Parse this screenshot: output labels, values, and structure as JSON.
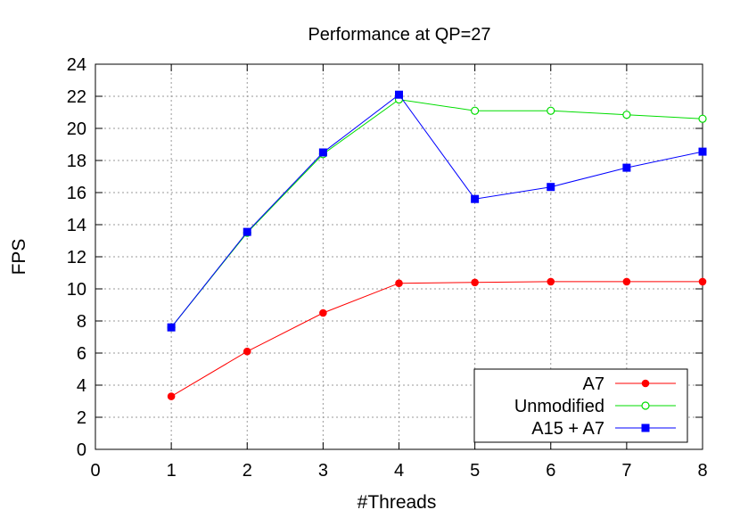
{
  "chart_data": {
    "type": "line",
    "title": "Performance at QP=27",
    "xlabel": "#Threads",
    "ylabel": "FPS",
    "xlim": [
      0,
      8
    ],
    "ylim": [
      0,
      24
    ],
    "xticks": [
      0,
      1,
      2,
      3,
      4,
      5,
      6,
      7,
      8
    ],
    "yticks": [
      0,
      2,
      4,
      6,
      8,
      10,
      12,
      14,
      16,
      18,
      20,
      22,
      24
    ],
    "grid": true,
    "legend_position": "bottom-right",
    "x": [
      1,
      2,
      3,
      4,
      5,
      6,
      7,
      8
    ],
    "series": [
      {
        "name": "A7",
        "color": "#ff0000",
        "marker": "filled-circle",
        "values": [
          3.3,
          6.1,
          8.5,
          10.35,
          10.4,
          10.45,
          10.45,
          10.45
        ]
      },
      {
        "name": "Unmodified",
        "color": "#00dd00",
        "marker": "open-circle",
        "values": [
          7.6,
          13.5,
          18.4,
          21.8,
          21.1,
          21.1,
          20.85,
          20.6
        ]
      },
      {
        "name": "A15 + A7",
        "color": "#0000ff",
        "marker": "filled-square",
        "values": [
          7.6,
          13.55,
          18.5,
          22.1,
          15.6,
          16.35,
          17.55,
          18.55
        ]
      }
    ]
  }
}
